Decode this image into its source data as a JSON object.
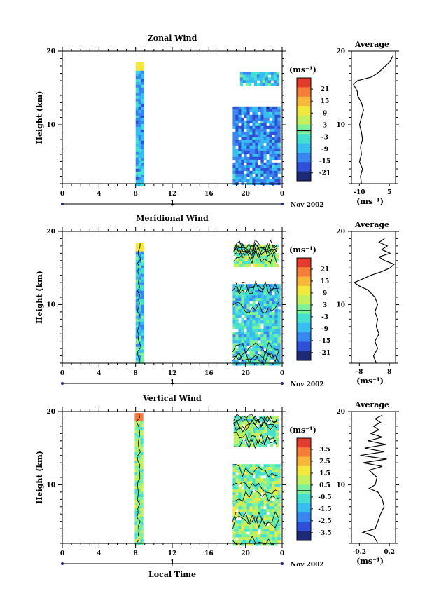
{
  "panels": [
    {
      "title": "Zonal Wind",
      "ylabel": "Height (km)",
      "ytick_labels": [
        "20",
        "10"
      ],
      "xtick_labels": [
        "0",
        "4",
        "8",
        "12",
        "16",
        "20",
        "0"
      ],
      "day_label": "1",
      "date_label": "Nov 2002",
      "colorbar": {
        "unit": "(ms⁻¹)",
        "labels": [
          "21",
          "15",
          "9",
          "3",
          "-3",
          "-9",
          "-15",
          "-21"
        ]
      },
      "average": {
        "title": "Average",
        "ytick_labels": [
          "20",
          "10"
        ],
        "xtick_labels": [
          "-10",
          "5"
        ],
        "xunit": "(ms⁻¹)"
      }
    },
    {
      "title": "Meridional Wind",
      "ylabel": "Height (km)",
      "ytick_labels": [
        "20",
        "10"
      ],
      "xtick_labels": [
        "0",
        "4",
        "8",
        "12",
        "16",
        "20",
        "0"
      ],
      "day_label": "1",
      "date_label": "Nov 2002",
      "colorbar": {
        "unit": "(ms⁻¹)",
        "labels": [
          "21",
          "15",
          "9",
          "3",
          "-3",
          "-9",
          "-15",
          "-21"
        ]
      },
      "average": {
        "title": "Average",
        "ytick_labels": [
          "20",
          "10"
        ],
        "xtick_labels": [
          "-8",
          "8"
        ],
        "xunit": "(ms⁻¹)"
      }
    },
    {
      "title": "Vertical Wind",
      "ylabel": "Height (km)",
      "ytick_labels": [
        "20",
        "10"
      ],
      "xtick_labels": [
        "0",
        "4",
        "8",
        "12",
        "16",
        "20",
        "0"
      ],
      "day_label": "1",
      "date_label": "Nov 2002",
      "xlabel": "Local Time",
      "colorbar": {
        "unit": "(ms⁻¹)",
        "labels": [
          "3.5",
          "2.5",
          "1.5",
          "0.5",
          "-0.5",
          "-1.5",
          "-2.5",
          "-3.5"
        ]
      },
      "average": {
        "title": "Average",
        "ytick_labels": [
          "20",
          "10"
        ],
        "xtick_labels": [
          "-0.2",
          "0.2"
        ],
        "xunit": "(ms⁻¹)"
      }
    }
  ],
  "chart_data": [
    {
      "type": "heatmap",
      "title": "Zonal Wind",
      "xlabel": "",
      "ylabel": "Height (km)",
      "xlim": [
        0,
        24
      ],
      "ylim": [
        2,
        20
      ],
      "date": "Nov 2002",
      "data_segments": [
        {
          "x": [
            8,
            8.8
          ],
          "y": [
            2,
            18.5
          ],
          "typical_value": -9
        },
        {
          "x": [
            18.6,
            23.6
          ],
          "y": [
            2,
            12.5
          ],
          "typical_value": -12
        },
        {
          "x": [
            19.4,
            23.6
          ],
          "y": [
            15.5,
            17.2
          ],
          "typical_value": -6
        }
      ],
      "colorbar": {
        "min": -24,
        "max": 24,
        "colors": [
          "#1e2a78",
          "#2e4fd6",
          "#3a86f0",
          "#38bdf0",
          "#45e0d0",
          "#7df29a",
          "#c3f060",
          "#f2e83e",
          "#f7b73b",
          "#f57d3a",
          "#e33b2e"
        ]
      },
      "average_profile": {
        "xlim": [
          -14,
          8
        ],
        "height": [
          2,
          3,
          4,
          5,
          6,
          7,
          8,
          9,
          10,
          11,
          12,
          13,
          14,
          14.5,
          15,
          15.5,
          16,
          16.5,
          17,
          17.5,
          18,
          18.5,
          19,
          19.5
        ],
        "value": [
          -9,
          -9.5,
          -8.5,
          -10,
          -9,
          -9.5,
          -8.5,
          -9,
          -10,
          -9,
          -8,
          -9,
          -11,
          -11,
          -12,
          -13,
          -11,
          -4,
          -1,
          1,
          3,
          5,
          6,
          7
        ]
      }
    },
    {
      "type": "heatmap",
      "title": "Meridional Wind",
      "xlabel": "",
      "ylabel": "Height (km)",
      "xlim": [
        0,
        24
      ],
      "ylim": [
        2,
        20
      ],
      "date": "Nov 2002",
      "data_segments": [
        {
          "x": [
            8,
            8.7
          ],
          "y": [
            2,
            18.4
          ],
          "typical_value": -6
        },
        {
          "x": [
            18.6,
            23.6
          ],
          "y": [
            2,
            12.8
          ],
          "typical_value": -5
        },
        {
          "x": [
            18.7,
            23.4
          ],
          "y": [
            15.5,
            18.2
          ],
          "typical_value": 2
        }
      ],
      "colorbar": {
        "min": -24,
        "max": 24,
        "colors": [
          "#1e2a78",
          "#2e4fd6",
          "#3a86f0",
          "#38bdf0",
          "#45e0d0",
          "#7df29a",
          "#c3f060",
          "#f2e83e",
          "#f7b73b",
          "#f57d3a",
          "#e33b2e"
        ]
      },
      "average_profile": {
        "xlim": [
          -8,
          8
        ],
        "height": [
          2,
          3,
          4,
          5,
          6,
          7,
          8,
          9,
          10,
          11,
          12,
          12.5,
          13,
          13.5,
          14,
          14.5,
          15,
          15.5,
          16,
          16.5,
          17,
          17.5,
          18,
          18.5,
          19
        ],
        "value": [
          1,
          0,
          1.5,
          0.5,
          2,
          1,
          1.5,
          0.5,
          1.5,
          0.5,
          -2,
          -5,
          -7,
          -4,
          -1,
          3,
          6,
          7.5,
          4,
          2,
          6,
          3,
          5,
          2,
          4
        ]
      }
    },
    {
      "type": "heatmap",
      "title": "Vertical Wind",
      "xlabel": "Local Time",
      "ylabel": "Height (km)",
      "xlim": [
        0,
        24
      ],
      "ylim": [
        2,
        20
      ],
      "date": "Nov 2002",
      "data_segments": [
        {
          "x": [
            7.9,
            8.7
          ],
          "y": [
            2,
            19.8
          ],
          "typical_value": 0.3
        },
        {
          "x": [
            18.6,
            23.6
          ],
          "y": [
            2,
            12.8
          ],
          "typical_value": 0.3
        },
        {
          "x": [
            18.7,
            23.4
          ],
          "y": [
            15.5,
            19.4
          ],
          "typical_value": 0.3
        }
      ],
      "colorbar": {
        "min": -4,
        "max": 4,
        "colors": [
          "#1e2a78",
          "#2e4fd6",
          "#3a86f0",
          "#38bdf0",
          "#45e0d0",
          "#7df29a",
          "#c3f060",
          "#f2e83e",
          "#f7b73b",
          "#f57d3a",
          "#e33b2e"
        ]
      },
      "average_profile": {
        "xlim": [
          -0.25,
          0.25
        ],
        "height": [
          2,
          3,
          3.5,
          4,
          5,
          6,
          7,
          8,
          9,
          9.5,
          10,
          11,
          12,
          12.5,
          13,
          13.5,
          14,
          14.5,
          15,
          15.5,
          16,
          16.5,
          17,
          17.5,
          18,
          18.5,
          19,
          19.5
        ],
        "value": [
          0.05,
          0,
          -0.12,
          0.02,
          0.05,
          0.08,
          0.12,
          0.1,
          0.05,
          -0.05,
          0.02,
          0.04,
          -0.05,
          0.1,
          -0.12,
          0.15,
          -0.15,
          0.12,
          -0.1,
          0.14,
          -0.06,
          0.1,
          -0.03,
          0.06,
          0,
          0.08,
          0.02,
          0.1
        ]
      }
    }
  ]
}
